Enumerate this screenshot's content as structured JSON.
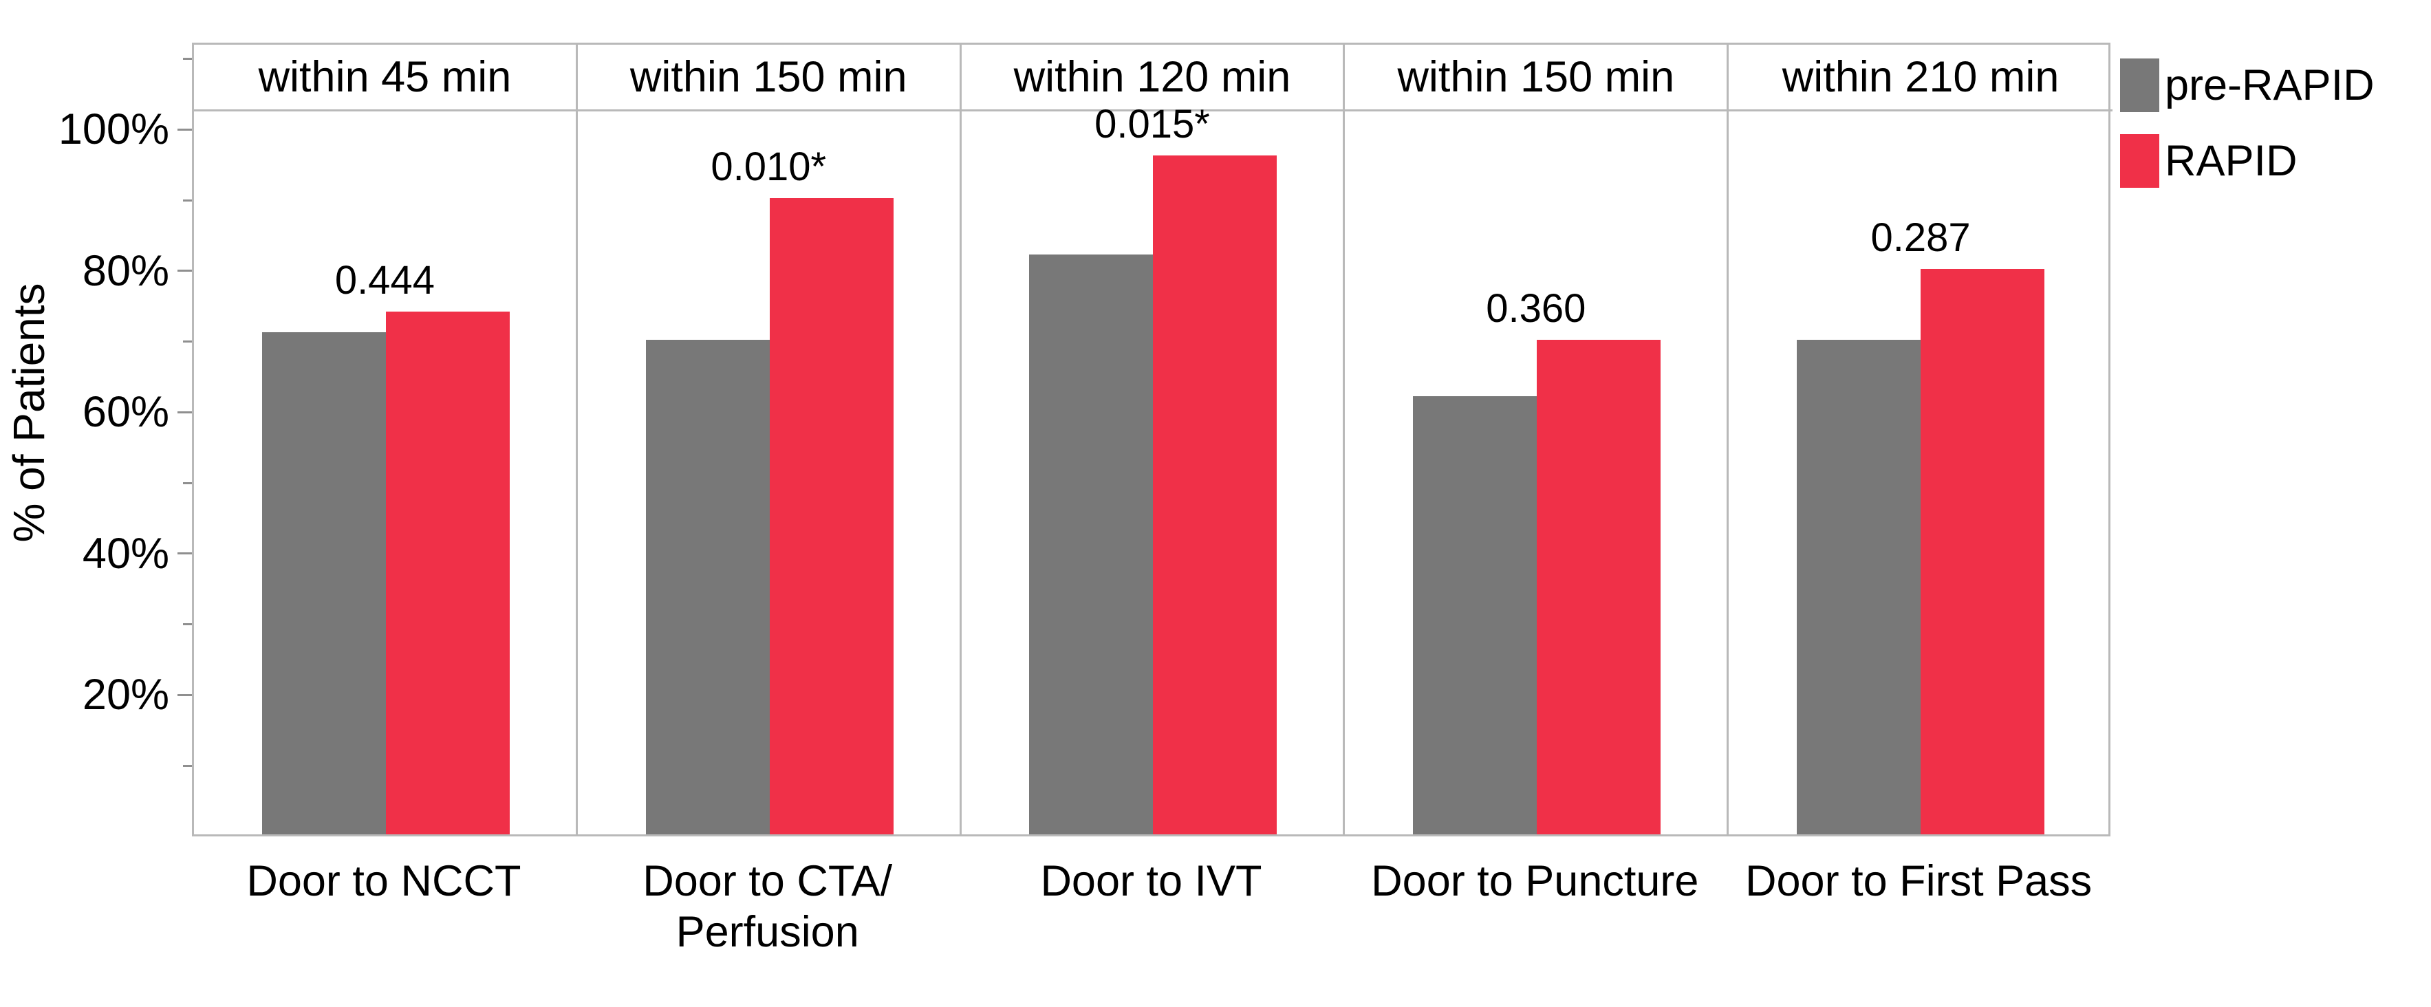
{
  "figure": {
    "background": "#FFFFFF"
  },
  "y_axis": {
    "title": "% of Patients",
    "tick_labels": [
      "100%",
      "80%",
      "60%",
      "40%",
      "20%"
    ]
  },
  "legend": {
    "position": "top-right",
    "entries": [
      {
        "label": "pre-RAPID",
        "color": "#787878"
      },
      {
        "label": "RAPID",
        "color": "#F03048"
      }
    ]
  },
  "colors": {
    "pre_rapid": "#787878",
    "rapid": "#F03048",
    "frame_line": "#B9B9B9",
    "tick_line": "#8F8F8F",
    "text": "#000000"
  },
  "chart_data": {
    "type": "bar",
    "title": "",
    "xlabel": "",
    "ylabel": "% of Patients",
    "ylim": [
      0,
      112
    ],
    "grid": false,
    "legend_position": "top-right",
    "y_major_ticks_pct": [
      20,
      40,
      60,
      80,
      100
    ],
    "y_minor_ticks_pct": [
      10,
      30,
      50,
      70,
      90,
      110
    ],
    "y_tick_label_format": "percent",
    "categories": [
      "Door to NCCT",
      "Door to CTA/Perfusion",
      "Door to IVT",
      "Door to Puncture",
      "Door to First Pass"
    ],
    "series": [
      {
        "name": "pre-RAPID",
        "color": "#787878",
        "values": [
          71,
          70,
          82,
          62,
          70
        ]
      },
      {
        "name": "RAPID",
        "color": "#F03048",
        "values": [
          74,
          90,
          96,
          70,
          80
        ]
      }
    ],
    "panels": [
      {
        "header": "within 45 min",
        "label_lines": [
          "Door to NCCT"
        ],
        "pre_rapid_pct": 71,
        "rapid_pct": 74,
        "p_value": "0.444"
      },
      {
        "header": "within 150 min",
        "label_lines": [
          "Door to CTA/",
          "Perfusion"
        ],
        "pre_rapid_pct": 70,
        "rapid_pct": 90,
        "p_value": "0.010*"
      },
      {
        "header": "within 120 min",
        "label_lines": [
          "Door to IVT"
        ],
        "pre_rapid_pct": 82,
        "rapid_pct": 96,
        "p_value": "0.015*"
      },
      {
        "header": "within 150 min",
        "label_lines": [
          "Door to Puncture"
        ],
        "pre_rapid_pct": 62,
        "rapid_pct": 70,
        "p_value": "0.360"
      },
      {
        "header": "within 210 min",
        "label_lines": [
          "Door to First Pass"
        ],
        "pre_rapid_pct": 70,
        "rapid_pct": 80,
        "p_value": "0.287"
      }
    ]
  }
}
